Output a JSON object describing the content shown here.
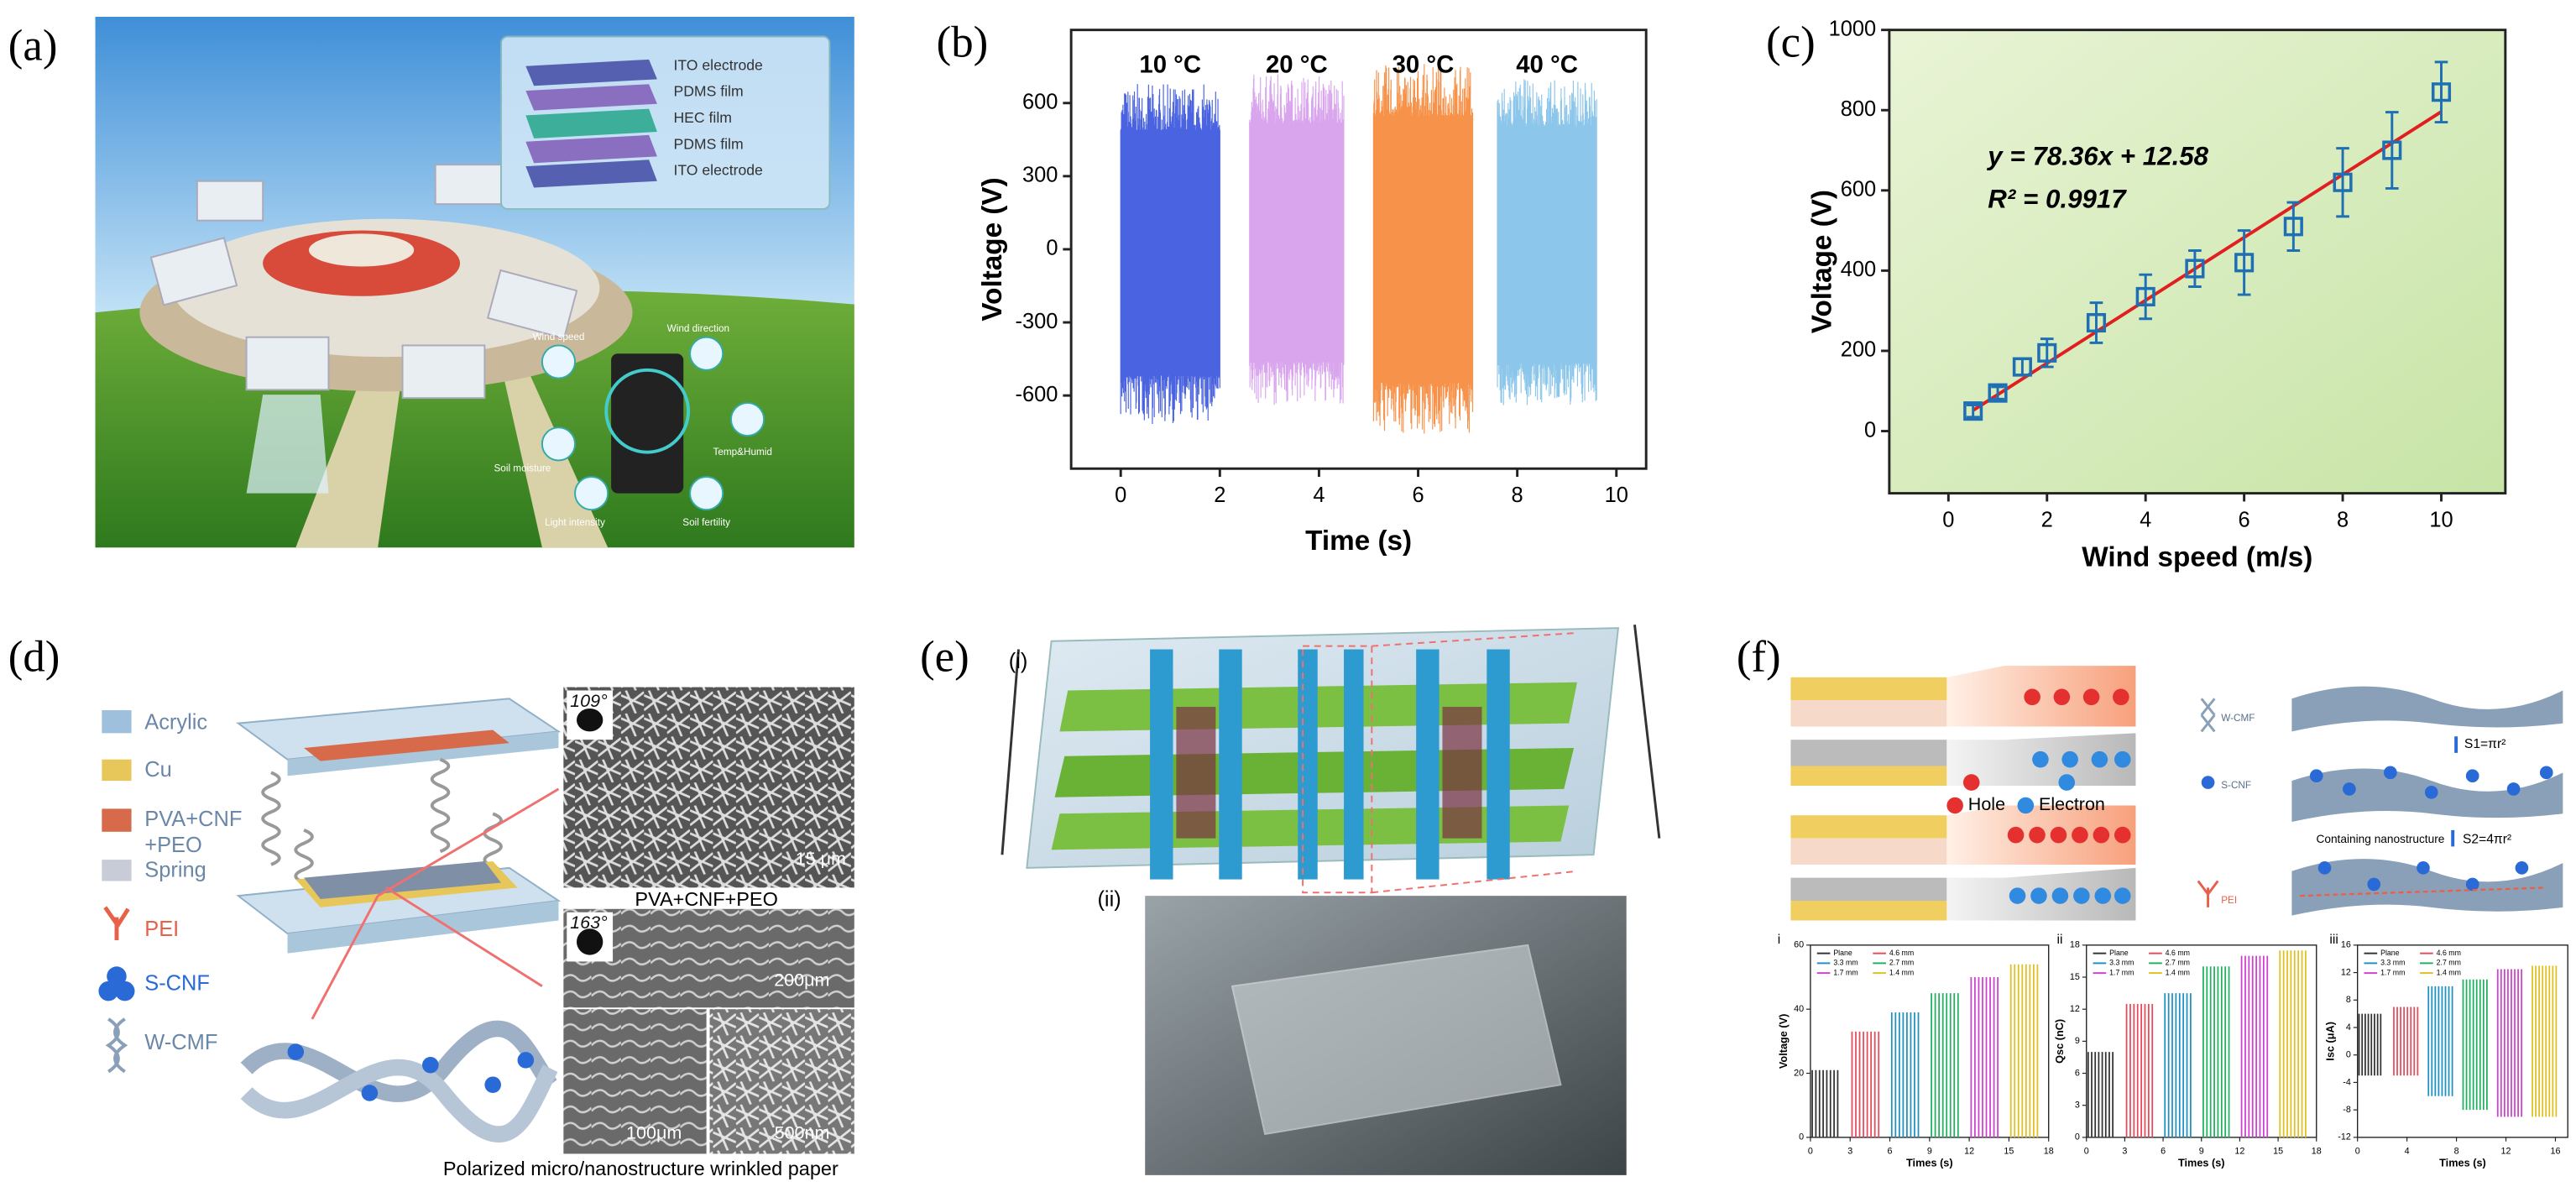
{
  "panel_a": {
    "label": "(a)",
    "layers": [
      "ITO electrode",
      "PDMS film",
      "HEC film",
      "PDMS film",
      "ITO electrode"
    ],
    "sensors": [
      "Wind speed",
      "Wind direction",
      "Soil moisture",
      "Temp&Humid",
      "Light intensity",
      "Soil fertility"
    ]
  },
  "chart_data": [
    {
      "type": "signal",
      "panel_label": "(b)",
      "xlabel": "Time (s)",
      "ylabel": "Voltage (V)",
      "xlim": [
        -1,
        10.6
      ],
      "ylim": [
        -900,
        900
      ],
      "xticks": [
        0,
        2,
        4,
        6,
        8,
        10
      ],
      "yticks": [
        -600,
        -300,
        0,
        300,
        600
      ],
      "series": [
        {
          "name": "10 °C",
          "color": "#4a63e0",
          "x": [
            0,
            2
          ],
          "values": [
            -720,
            680
          ]
        },
        {
          "name": "20 °C",
          "color": "#d9a6ee",
          "x": [
            2.6,
            4.5
          ],
          "values": [
            -640,
            720
          ]
        },
        {
          "name": "30 °C",
          "color": "#f7924a",
          "x": [
            5.1,
            7.1
          ],
          "values": [
            -760,
            760
          ]
        },
        {
          "name": "40 °C",
          "color": "#8cc6ea",
          "x": [
            7.6,
            9.6
          ],
          "values": [
            -650,
            700
          ]
        }
      ]
    },
    {
      "type": "scatter",
      "panel_label": "(c)",
      "xlabel": "Wind speed (m/s)",
      "ylabel": "Voltage (V)",
      "xlim": [
        -1.2,
        11.3
      ],
      "ylim": [
        -155,
        1000
      ],
      "xticks": [
        0,
        2,
        4,
        6,
        8,
        10
      ],
      "yticks": [
        0,
        200,
        400,
        600,
        800,
        1000
      ],
      "x": [
        0.5,
        1,
        1.5,
        2,
        3,
        4,
        5,
        6,
        7,
        8,
        9,
        10
      ],
      "values": [
        50,
        95,
        160,
        195,
        270,
        335,
        405,
        420,
        510,
        620,
        700,
        845
      ],
      "errors": [
        15,
        15,
        20,
        35,
        50,
        55,
        45,
        80,
        60,
        85,
        95,
        75
      ],
      "color": "#1f6fb5",
      "fit": {
        "slope": 78.36,
        "intercept": 12.58,
        "color": "#e02020"
      },
      "annotations": [
        "y = 78.36x + 12.58",
        "R² = 0.9917"
      ]
    },
    {
      "type": "pulses",
      "panel_label": "i",
      "xlabel": "Times (s)",
      "ylabel": "Voltage (V)",
      "xlim": [
        0,
        18
      ],
      "ylim": [
        0,
        60
      ],
      "xticks": [
        0,
        3,
        6,
        9,
        12,
        15,
        18
      ],
      "yticks": [
        0,
        20,
        40,
        60
      ],
      "series": [
        {
          "name": "Plane",
          "color": "#333333",
          "x": [
            0,
            2.2
          ],
          "values": [
            0,
            21
          ]
        },
        {
          "name": "4.6 mm",
          "color": "#e84a5a",
          "x": [
            3,
            5.3
          ],
          "values": [
            0,
            33
          ]
        },
        {
          "name": "3.3 mm",
          "color": "#2090c0",
          "x": [
            6,
            8.3
          ],
          "values": [
            0,
            39
          ]
        },
        {
          "name": "2.7 mm",
          "color": "#20b060",
          "x": [
            9,
            11.3
          ],
          "values": [
            0,
            45
          ]
        },
        {
          "name": "1.7 mm",
          "color": "#d040d0",
          "x": [
            12,
            14.3
          ],
          "values": [
            0,
            50
          ]
        },
        {
          "name": "1.4 mm",
          "color": "#e0c020",
          "x": [
            15,
            17.3
          ],
          "values": [
            0,
            54
          ]
        }
      ]
    },
    {
      "type": "pulses",
      "panel_label": "ii",
      "xlabel": "Times (s)",
      "ylabel": "Qsc (nC)",
      "xlim": [
        0,
        18
      ],
      "ylim": [
        0,
        18
      ],
      "xticks": [
        0,
        3,
        6,
        9,
        12,
        15,
        18
      ],
      "yticks": [
        0,
        3,
        6,
        9,
        12,
        15,
        18
      ],
      "series": [
        {
          "name": "Plane",
          "color": "#333333",
          "x": [
            0,
            2.2
          ],
          "values": [
            0,
            8
          ]
        },
        {
          "name": "4.6 mm",
          "color": "#e84a5a",
          "x": [
            3,
            5.3
          ],
          "values": [
            0,
            12.5
          ]
        },
        {
          "name": "3.3 mm",
          "color": "#2090c0",
          "x": [
            6,
            8.3
          ],
          "values": [
            0,
            13.5
          ]
        },
        {
          "name": "2.7 mm",
          "color": "#20b060",
          "x": [
            9,
            11.3
          ],
          "values": [
            0,
            16
          ]
        },
        {
          "name": "1.7 mm",
          "color": "#d040d0",
          "x": [
            12,
            14.3
          ],
          "values": [
            0,
            17
          ]
        },
        {
          "name": "1.4 mm",
          "color": "#e0c020",
          "x": [
            15,
            17.3
          ],
          "values": [
            0,
            17.5
          ]
        }
      ]
    },
    {
      "type": "pulses",
      "panel_label": "iii",
      "xlabel": "Times (s)",
      "ylabel": "Isc (μA)",
      "xlim": [
        0,
        17
      ],
      "ylim": [
        -12,
        16
      ],
      "xticks": [
        0,
        4,
        8,
        12,
        16
      ],
      "yticks": [
        -12,
        -8,
        -4,
        0,
        4,
        8,
        12,
        16
      ],
      "series": [
        {
          "name": "Plane",
          "color": "#333333",
          "x": [
            0,
            2
          ],
          "values": [
            -3,
            6
          ]
        },
        {
          "name": "4.6 mm",
          "color": "#e84a5a",
          "x": [
            2.8,
            5
          ],
          "values": [
            -3,
            7
          ]
        },
        {
          "name": "3.3 mm",
          "color": "#2090c0",
          "x": [
            5.6,
            7.8
          ],
          "values": [
            -6,
            10
          ]
        },
        {
          "name": "2.7 mm",
          "color": "#20b060",
          "x": [
            8.4,
            10.6
          ],
          "values": [
            -8,
            11
          ]
        },
        {
          "name": "1.7 mm",
          "color": "#d040d0",
          "x": [
            11.2,
            13.4
          ],
          "values": [
            -9,
            12.5
          ]
        },
        {
          "name": "1.4 mm",
          "color": "#e0c020",
          "x": [
            14,
            16.2
          ],
          "values": [
            -9,
            13
          ]
        }
      ]
    }
  ],
  "panel_d": {
    "label": "(d)",
    "legend": [
      "Acrylic",
      "Cu",
      "PVA+CNF",
      "+PEO",
      "Spring",
      "PEI",
      "S-CNF",
      "W-CMF"
    ],
    "contact_angles": [
      "109°",
      "163°"
    ],
    "scale_bars": [
      "15 μm",
      "200μm",
      "100μm",
      "500nm"
    ],
    "captions": [
      "PVA+CNF+PEO",
      "Polarized micro/nanostructure  wrinkled paper"
    ]
  },
  "panel_e": {
    "label": "(e)",
    "sub_labels": [
      "(i)",
      "(ii)"
    ]
  },
  "panel_f": {
    "label": "(f)",
    "legend": [
      "Hole",
      "Electron"
    ],
    "labels": [
      "W-CMF",
      "S-CNF",
      "PEI"
    ],
    "equations": [
      "S1=πr²",
      "S2=4πr²"
    ],
    "note": "Containing nanostructure"
  }
}
